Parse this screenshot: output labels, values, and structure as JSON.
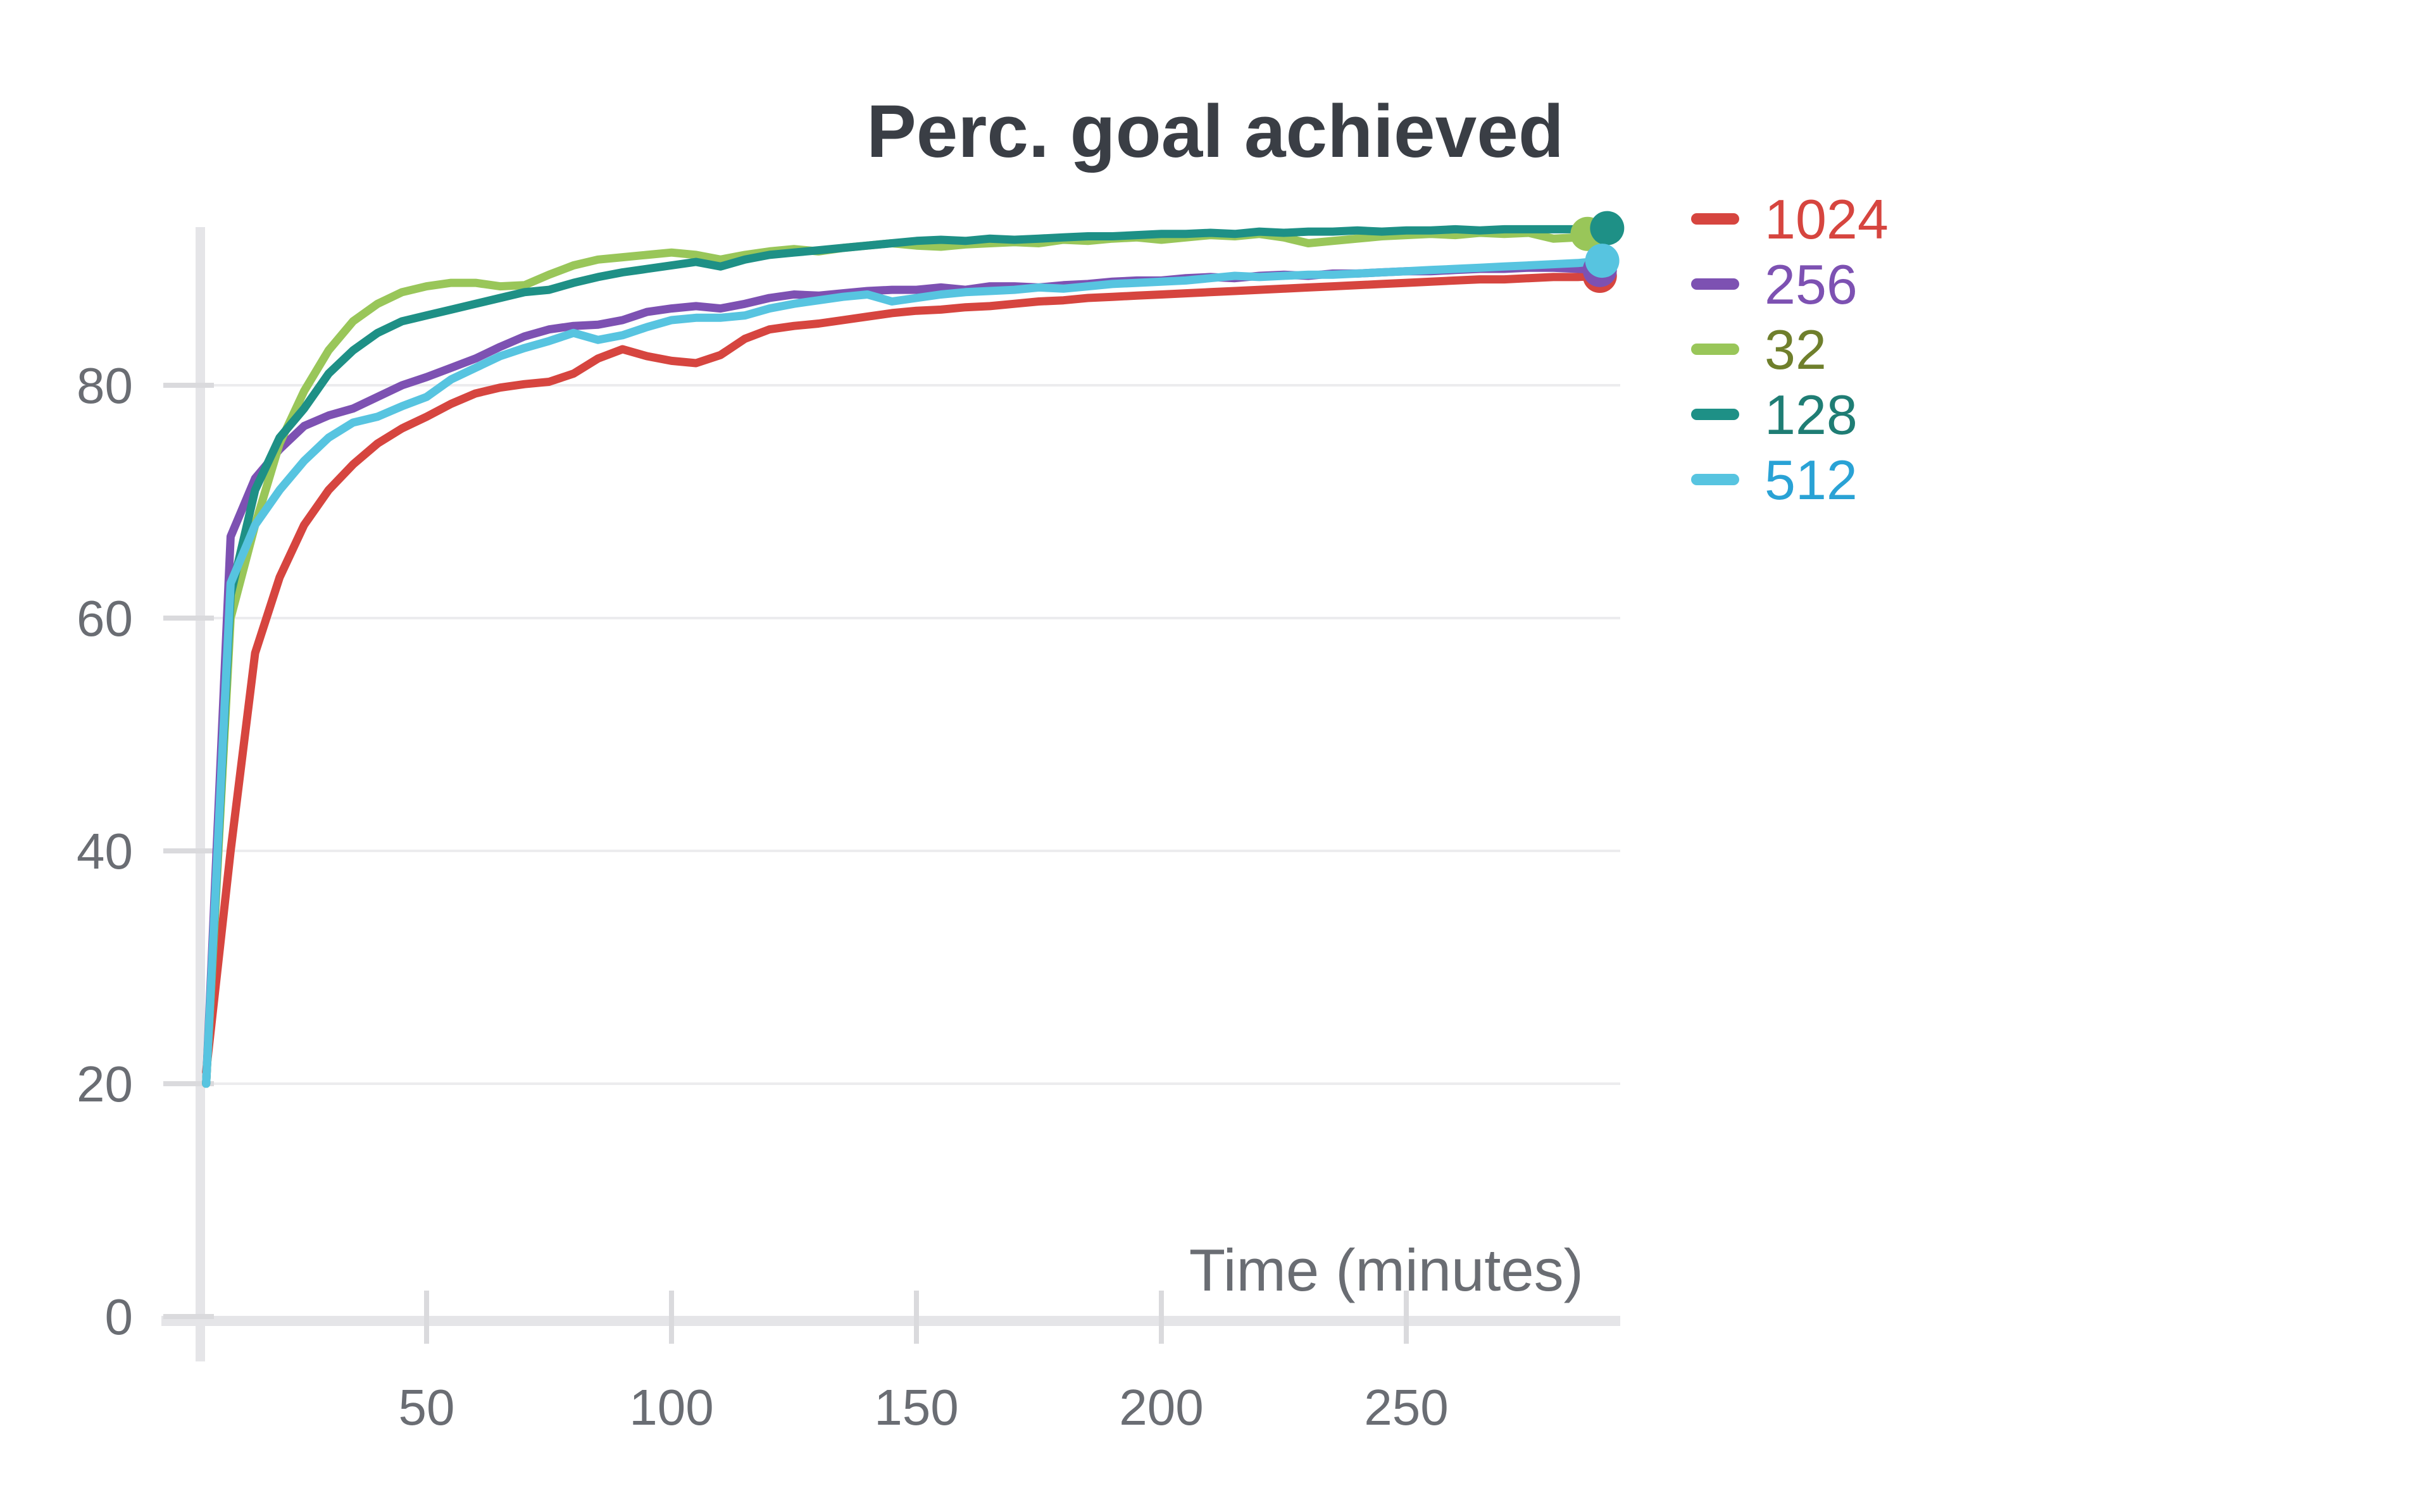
{
  "chart_data": {
    "type": "line",
    "title": "Perc. goal achieved",
    "xlabel": "Time (minutes)",
    "ylabel": "",
    "x_ticks": [
      50,
      100,
      150,
      200,
      250
    ],
    "y_ticks": [
      0,
      20,
      40,
      60,
      80
    ],
    "xlim": [
      4,
      296
    ],
    "ylim": [
      0,
      96
    ],
    "grid": "horizontal",
    "legend_position": "right",
    "axis_color": "#e5e5e8",
    "gridline_color": "#ececee",
    "tick_mark_color": "#dadadd",
    "text_color": "#6a6d73",
    "title_color": "#3a3e45",
    "x": [
      5,
      10,
      15,
      20,
      25,
      30,
      35,
      40,
      45,
      50,
      55,
      60,
      65,
      70,
      75,
      80,
      85,
      90,
      95,
      100,
      105,
      110,
      115,
      120,
      125,
      130,
      135,
      140,
      145,
      150,
      155,
      160,
      165,
      170,
      175,
      180,
      185,
      190,
      195,
      200,
      205,
      210,
      215,
      220,
      225,
      230,
      235,
      240,
      245,
      250,
      255,
      260,
      265,
      270,
      275,
      280,
      285,
      290
    ],
    "series": [
      {
        "name": "1024",
        "color": "#d6453f",
        "label_color": "#d6453f",
        "x_end": 289.5,
        "values": [
          21,
          40,
          57,
          63.5,
          68,
          71,
          73.2,
          75,
          76.3,
          77.3,
          78.4,
          79.3,
          79.8,
          80.1,
          80.3,
          81,
          82.3,
          83.1,
          82.5,
          82.1,
          81.9,
          82.6,
          84,
          84.8,
          85.1,
          85.3,
          85.6,
          85.9,
          86.2,
          86.4,
          86.5,
          86.7,
          86.8,
          87,
          87.2,
          87.3,
          87.5,
          87.6,
          87.7,
          87.8,
          87.9,
          88,
          88.1,
          88.2,
          88.3,
          88.4,
          88.5,
          88.6,
          88.7,
          88.8,
          88.9,
          89,
          89.1,
          89.1,
          89.2,
          89.3,
          89.3,
          89.4
        ]
      },
      {
        "name": "256",
        "color": "#7d51b2",
        "label_color": "#7d51b2",
        "x_end": 289.5,
        "values": [
          20,
          67,
          72,
          74.5,
          76.5,
          77.4,
          78,
          79,
          80,
          80.7,
          81.5,
          82.3,
          83.3,
          84.2,
          84.8,
          85.1,
          85.2,
          85.6,
          86.3,
          86.6,
          86.8,
          86.6,
          87,
          87.5,
          87.8,
          87.7,
          87.9,
          88.1,
          88.2,
          88.2,
          88.4,
          88.2,
          88.5,
          88.5,
          88.4,
          88.6,
          88.7,
          88.9,
          89,
          89,
          89.2,
          89.3,
          89.2,
          89.4,
          89.5,
          89.4,
          89.6,
          89.6,
          89.7,
          89.8,
          89.8,
          89.9,
          90,
          90,
          90.1,
          90.1,
          90,
          89.9
        ]
      },
      {
        "name": "32",
        "color": "#99c659",
        "label_color": "#6f7f2c",
        "x_end": 287,
        "values": [
          20,
          60,
          68,
          75,
          79.5,
          83,
          85.5,
          87,
          88,
          88.5,
          88.8,
          88.8,
          88.5,
          88.6,
          89.5,
          90.3,
          90.8,
          91,
          91.2,
          91.4,
          91.2,
          90.8,
          91.2,
          91.5,
          91.7,
          91.5,
          91.8,
          92,
          92.2,
          92,
          91.9,
          92.1,
          92.2,
          92.3,
          92.2,
          92.5,
          92.4,
          92.6,
          92.7,
          92.5,
          92.7,
          92.9,
          92.8,
          93,
          92.7,
          92.2,
          92.4,
          92.6,
          92.8,
          92.9,
          93,
          92.9,
          93.1,
          93,
          93.1,
          92.6,
          92.7,
          93
        ]
      },
      {
        "name": "128",
        "color": "#1e9086",
        "label_color": "#1f7d74",
        "x_end": 291,
        "values": [
          20,
          62,
          71,
          75.5,
          78,
          81,
          83,
          84.5,
          85.5,
          86,
          86.5,
          87,
          87.5,
          88,
          88.2,
          88.8,
          89.3,
          89.7,
          90,
          90.3,
          90.6,
          90.2,
          90.8,
          91.2,
          91.4,
          91.6,
          91.8,
          92,
          92.2,
          92.4,
          92.5,
          92.4,
          92.6,
          92.5,
          92.6,
          92.7,
          92.8,
          92.8,
          92.9,
          93,
          93,
          93.1,
          93,
          93.2,
          93.1,
          93.2,
          93.2,
          93.3,
          93.2,
          93.3,
          93.3,
          93.4,
          93.3,
          93.4,
          93.4,
          93.4,
          93.4,
          93.5
        ]
      },
      {
        "name": "512",
        "color": "#57c4e0",
        "label_color": "#29a2d5",
        "x_end": 290,
        "values": [
          20,
          63,
          68,
          71,
          73.5,
          75.5,
          76.8,
          77.3,
          78.2,
          79,
          80.5,
          81.5,
          82.5,
          83.2,
          83.8,
          84.5,
          83.9,
          84.3,
          85,
          85.6,
          85.8,
          85.8,
          86,
          86.6,
          87,
          87.3,
          87.6,
          87.8,
          87.2,
          87.5,
          87.8,
          88,
          88.1,
          88.2,
          88.4,
          88.3,
          88.5,
          88.7,
          88.8,
          88.9,
          89,
          89.2,
          89.4,
          89.3,
          89.4,
          89.5,
          89.5,
          89.6,
          89.7,
          89.8,
          89.9,
          90,
          90.1,
          90.2,
          90.3,
          90.4,
          90.5,
          90.7
        ]
      }
    ]
  }
}
